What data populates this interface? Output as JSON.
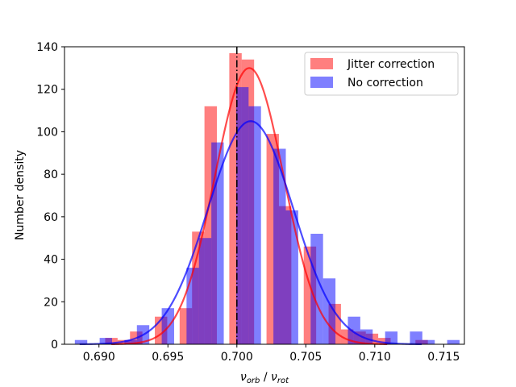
{
  "chart_data": {
    "type": "bar",
    "xlabel": "ν_orb / ν_rot",
    "xlabel_parts": {
      "nu1": "ν",
      "sub1": "orb",
      "sep": " / ",
      "nu2": "ν",
      "sub2": "rot"
    },
    "ylabel": "Number density",
    "xlim": [
      0.6875,
      0.7165
    ],
    "ylim": [
      0,
      140
    ],
    "xticks": [
      0.69,
      0.695,
      0.7,
      0.705,
      0.71,
      0.715
    ],
    "xtick_labels": [
      "0.690",
      "0.695",
      "0.700",
      "0.705",
      "0.710",
      "0.715"
    ],
    "yticks": [
      0,
      20,
      40,
      60,
      80,
      100,
      120,
      140
    ],
    "ytick_labels": [
      "0",
      "20",
      "40",
      "60",
      "80",
      "100",
      "120",
      "140"
    ],
    "reference_line_x": 0.7,
    "legend_position": "upper right",
    "series": [
      {
        "name": "Jitter correction",
        "color": "#ff0000",
        "bins": [
          {
            "x": 0.6909,
            "y": 3
          },
          {
            "x": 0.6918,
            "y": 2
          },
          {
            "x": 0.6927,
            "y": 6
          },
          {
            "x": 0.6945,
            "y": 13
          },
          {
            "x": 0.6963,
            "y": 17
          },
          {
            "x": 0.6972,
            "y": 53
          },
          {
            "x": 0.6981,
            "y": 112
          },
          {
            "x": 0.6999,
            "y": 137
          },
          {
            "x": 0.7008,
            "y": 134
          },
          {
            "x": 0.7026,
            "y": 99
          },
          {
            "x": 0.7035,
            "y": 65
          },
          {
            "x": 0.7053,
            "y": 46
          },
          {
            "x": 0.7071,
            "y": 19
          },
          {
            "x": 0.708,
            "y": 7
          },
          {
            "x": 0.7089,
            "y": 6
          },
          {
            "x": 0.7098,
            "y": 5
          },
          {
            "x": 0.7107,
            "y": 3
          },
          {
            "x": 0.7134,
            "y": 2
          }
        ],
        "fit": {
          "mu": 0.7009,
          "sigma": 0.0025,
          "peak": 130
        }
      },
      {
        "name": "No correction",
        "color": "#0000ff",
        "bins": [
          {
            "x": 0.6887,
            "y": 2
          },
          {
            "x": 0.6905,
            "y": 3
          },
          {
            "x": 0.6923,
            "y": 2
          },
          {
            "x": 0.6932,
            "y": 9
          },
          {
            "x": 0.695,
            "y": 17
          },
          {
            "x": 0.6968,
            "y": 36
          },
          {
            "x": 0.6977,
            "y": 50
          },
          {
            "x": 0.6986,
            "y": 95
          },
          {
            "x": 0.7004,
            "y": 121
          },
          {
            "x": 0.7013,
            "y": 112
          },
          {
            "x": 0.7031,
            "y": 92
          },
          {
            "x": 0.704,
            "y": 63
          },
          {
            "x": 0.7058,
            "y": 52
          },
          {
            "x": 0.7067,
            "y": 31
          },
          {
            "x": 0.7085,
            "y": 13
          },
          {
            "x": 0.7094,
            "y": 7
          },
          {
            "x": 0.7112,
            "y": 6
          },
          {
            "x": 0.713,
            "y": 6
          },
          {
            "x": 0.7139,
            "y": 2
          },
          {
            "x": 0.7157,
            "y": 2
          }
        ],
        "fit": {
          "mu": 0.701,
          "sigma": 0.0031,
          "peak": 105
        }
      }
    ]
  }
}
